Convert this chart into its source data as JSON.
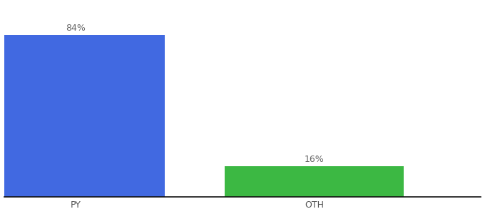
{
  "categories": [
    "PY",
    "OTH"
  ],
  "values": [
    84,
    16
  ],
  "bar_colors": [
    "#4169e1",
    "#3cb843"
  ],
  "labels": [
    "84%",
    "16%"
  ],
  "ylim": [
    0,
    100
  ],
  "background_color": "#ffffff",
  "label_fontsize": 9,
  "tick_fontsize": 9,
  "bar_width": 0.75,
  "xlim": [
    -0.3,
    1.7
  ]
}
